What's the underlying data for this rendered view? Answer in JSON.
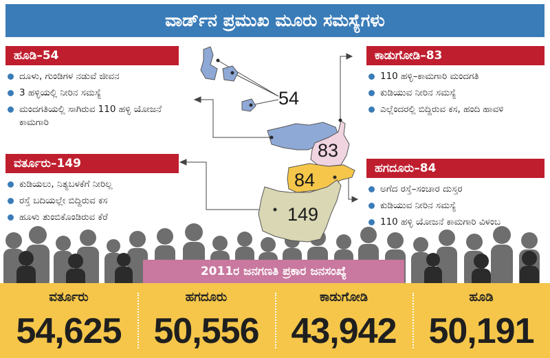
{
  "title": "ವಾರ್ಡ್‌ನ ಪ್ರಮುಖ ಮೂರು ಸಮಸ್ಯೆಗಳು",
  "wards": [
    {
      "header": "ಹೂಡಿ–54",
      "issues": [
        "ದೂಳು, ಗುಂಡಿಗಳ ನಡುವೆ ಜೀವನ",
        "3 ಹಳ್ಳಿಯಲ್ಲಿ ನೀರಿನ ಸಮಸ್ಯೆ",
        "ಮಂದಗತಿಯಲ್ಲಿ ಸಾಗಿರುವ 110 ಹಳ್ಳಿ ಯೋಜನೆ ಕಾಮಗಾರಿ"
      ]
    },
    {
      "header": "ವರ್ತೂರು–149",
      "issues": [
        "ಕುಡಿಯಲು, ನಿತ್ಯಬಳಕೆಗೆ ನೀರಿಲ್ಲ",
        "ರಸ್ತೆ ಬದಿಯಲ್ಲೇ ಬಿದ್ದಿರುವ ಕಸ",
        "ಹೂಳು ತುಂಬಿಕೊಂಡಿರುವ ಕೆರೆ"
      ]
    },
    {
      "header": "ಕಾಡುಗೋಡಿ–83",
      "issues": [
        "110 ಹಳ್ಳಿ–ಕಾಮಗಾರಿ ಮಂದಗತಿ",
        "ಕುಡಿಯುವ ನೀರಿನ ಸಮಸ್ಯೆ",
        "ಎಲ್ಲೆಂದರಲ್ಲಿ ಬಿದ್ದಿರುವ ಕಸ, ಹಂದಿ ಹಾವಳಿ"
      ]
    },
    {
      "header": "ಹಗದೂರು–84",
      "issues": [
        "ಅಗೆದ ರಸ್ತೆ–ಸಂಚಾರ ದುಸ್ತರ",
        "ಕುಡಿಯುವ ನೀರಿನ ಸಮಸ್ಯೆ",
        "110 ಹಳ್ಳಿ ಯೋಜನೆ ಕಾಮಗಾರಿ ವಿಳಂಬ"
      ]
    }
  ],
  "map": {
    "labels": [
      "54",
      "83",
      "84",
      "149"
    ],
    "colors": {
      "ward54": "#8fa9d6",
      "ward83": "#f0d4e0",
      "ward84": "#f5c64a",
      "ward149": "#d9d7b4"
    }
  },
  "census_banner": "2011ರ ಜನಗಣತಿ ಪ್ರಕಾರ ಜನಸಂಖ್ಯೆ",
  "population": [
    {
      "name": "ವರ್ತೂರು",
      "value": "54,625"
    },
    {
      "name": "ಹಗದೂರು",
      "value": "50,556"
    },
    {
      "name": "ಕಾಡುಗೋಡಿ",
      "value": "43,942"
    },
    {
      "name": "ಹೂಡಿ",
      "value": "50,191"
    }
  ]
}
